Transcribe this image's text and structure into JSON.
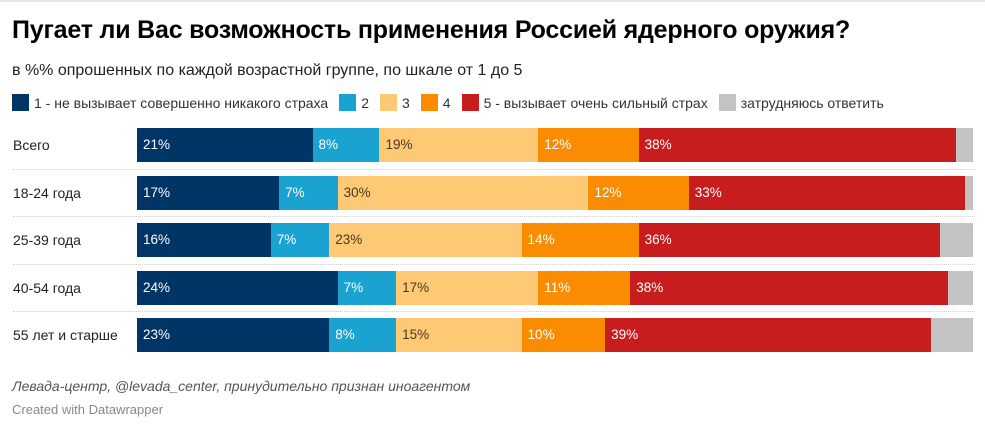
{
  "chart_data": {
    "type": "bar",
    "orientation": "horizontal",
    "stacked": true,
    "title": "Пугает ли Вас возможность применения Россией ядерного оружия?",
    "subtitle": "в %% опрошенных по каждой возрастной группе, по шкале от 1 до 5",
    "xlabel": "",
    "ylabel": "",
    "xlim": [
      0,
      100
    ],
    "grid": false,
    "legend_position": "top",
    "categories": [
      "Всего",
      "18-24 года",
      "25-39 года",
      "40-54 года",
      "55 лет и старше"
    ],
    "series": [
      {
        "name": "1 - не вызывает совершенно никакого страха",
        "color": "#003566",
        "label_color": "#ffffff",
        "values": [
          21,
          17,
          16,
          24,
          23
        ],
        "labels": [
          "21%",
          "17%",
          "16%",
          "24%",
          "23%"
        ]
      },
      {
        "name": "2",
        "color": "#1aa2d1",
        "label_color": "#ffffff",
        "values": [
          8,
          7,
          7,
          7,
          8
        ],
        "labels": [
          "8%",
          "7%",
          "7%",
          "7%",
          "8%"
        ]
      },
      {
        "name": "3",
        "color": "#fdc974",
        "label_color": "#4a3a1f",
        "values": [
          19,
          30,
          23,
          17,
          15
        ],
        "labels": [
          "19%",
          "30%",
          "23%",
          "17%",
          "15%"
        ]
      },
      {
        "name": "4",
        "color": "#f98c00",
        "label_color": "#ffffff",
        "values": [
          12,
          12,
          14,
          11,
          10
        ],
        "labels": [
          "12%",
          "12%",
          "14%",
          "11%",
          "10%"
        ]
      },
      {
        "name": "5 - вызывает очень сильный страх",
        "color": "#c81d1e",
        "label_color": "#ffffff",
        "values": [
          38,
          33,
          36,
          38,
          39
        ],
        "labels": [
          "38%",
          "33%",
          "36%",
          "38%",
          "39%"
        ]
      },
      {
        "name": "затрудняюсь ответить",
        "color": "#c3c3c3",
        "label_color": "#333333",
        "values": [
          2,
          1,
          4,
          3,
          5
        ],
        "labels": [
          "",
          "",
          "",
          "",
          ""
        ]
      }
    ],
    "source": "Левада-центр, @levada_center, принудительно признан иноагентом",
    "credit": "Created with Datawrapper"
  }
}
